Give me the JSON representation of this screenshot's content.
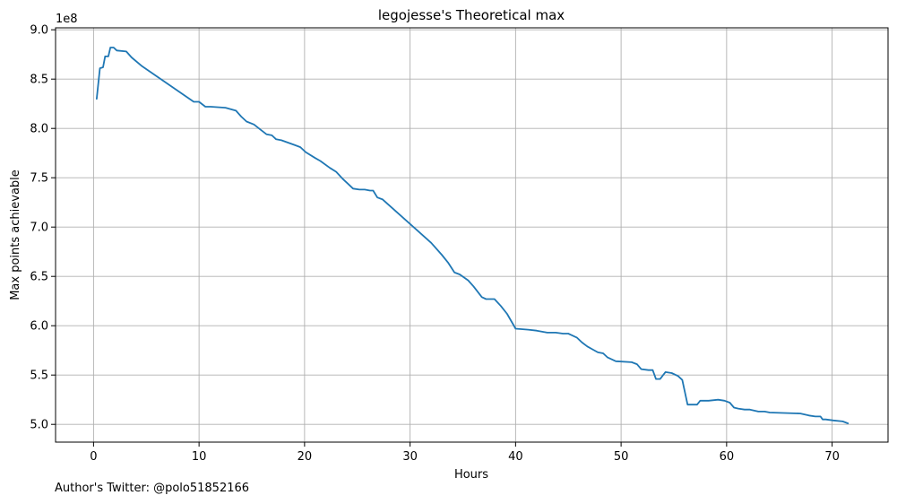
{
  "chart_data": {
    "type": "line",
    "title": "legojesse's Theoretical max",
    "xlabel": "Hours",
    "ylabel": "Max points achievable",
    "y_offset_label": "1e8",
    "xlim": [
      -3.6,
      75.3
    ],
    "ylim": [
      4.82,
      9.02
    ],
    "x_ticks": [
      0,
      10,
      20,
      30,
      40,
      50,
      60,
      70
    ],
    "x_tick_labels": [
      "0",
      "10",
      "20",
      "30",
      "40",
      "50",
      "60",
      "70"
    ],
    "y_ticks": [
      5.0,
      5.5,
      6.0,
      6.5,
      7.0,
      7.5,
      8.0,
      8.5,
      9.0
    ],
    "y_tick_labels": [
      "5.0",
      "5.5",
      "6.0",
      "6.5",
      "7.0",
      "7.5",
      "8.0",
      "8.5",
      "9.0"
    ],
    "grid": true,
    "line_color": "#1f77b4",
    "series": [
      {
        "x": [
          0.3,
          0.6,
          0.9,
          1.1,
          1.4,
          1.6,
          1.9,
          2.2,
          3.1,
          3.6,
          4.6,
          9.5,
          10.0,
          10.6,
          11.1,
          12.5,
          13.5,
          14.0,
          14.5,
          15.2,
          15.8,
          16.4,
          16.9,
          17.3,
          17.8,
          19.1,
          19.6,
          20.1,
          21.0,
          21.5,
          22.4,
          23.0,
          23.6,
          24.1,
          24.6,
          25.2,
          25.7,
          26.2,
          26.5,
          26.9,
          27.4,
          32.0,
          33.0,
          33.6,
          34.2,
          34.7,
          35.5,
          36.0,
          36.8,
          37.2,
          38.0,
          38.6,
          39.2,
          40.0,
          41.2,
          42.0,
          43.0,
          43.8,
          44.5,
          45.0,
          45.8,
          46.3,
          46.8,
          47.3,
          47.8,
          48.3,
          48.7,
          49.5,
          51.0,
          51.5,
          51.9,
          52.6,
          53.0,
          53.3,
          53.7,
          54.2,
          54.8,
          55.4,
          55.8,
          56.3,
          57.2,
          57.5,
          58.3,
          59.2,
          59.8,
          60.3,
          60.7,
          61.1,
          61.7,
          62.2,
          63.0,
          63.6,
          64.1,
          67.0,
          67.8,
          68.4,
          68.9,
          69.1,
          69.4,
          70.1,
          71.0,
          71.5
        ],
        "y": [
          8.3,
          8.61,
          8.62,
          8.73,
          8.73,
          8.82,
          8.82,
          8.79,
          8.78,
          8.72,
          8.63,
          8.27,
          8.27,
          8.22,
          8.22,
          8.21,
          8.18,
          8.12,
          8.07,
          8.04,
          7.99,
          7.94,
          7.93,
          7.89,
          7.88,
          7.83,
          7.81,
          7.76,
          7.7,
          7.67,
          7.6,
          7.56,
          7.49,
          7.44,
          7.39,
          7.38,
          7.38,
          7.37,
          7.37,
          7.3,
          7.28,
          6.84,
          6.72,
          6.64,
          6.54,
          6.52,
          6.46,
          6.4,
          6.29,
          6.27,
          6.27,
          6.2,
          6.12,
          5.97,
          5.96,
          5.95,
          5.93,
          5.93,
          5.92,
          5.92,
          5.88,
          5.83,
          5.79,
          5.76,
          5.73,
          5.72,
          5.68,
          5.64,
          5.63,
          5.61,
          5.56,
          5.55,
          5.55,
          5.46,
          5.46,
          5.53,
          5.52,
          5.49,
          5.45,
          5.2,
          5.2,
          5.24,
          5.24,
          5.25,
          5.24,
          5.22,
          5.17,
          5.16,
          5.15,
          5.15,
          5.13,
          5.13,
          5.12,
          5.11,
          5.09,
          5.08,
          5.08,
          5.05,
          5.05,
          5.04,
          5.03,
          5.01
        ]
      }
    ]
  },
  "footer": {
    "caption": "Author's Twitter: @polo51852166"
  }
}
